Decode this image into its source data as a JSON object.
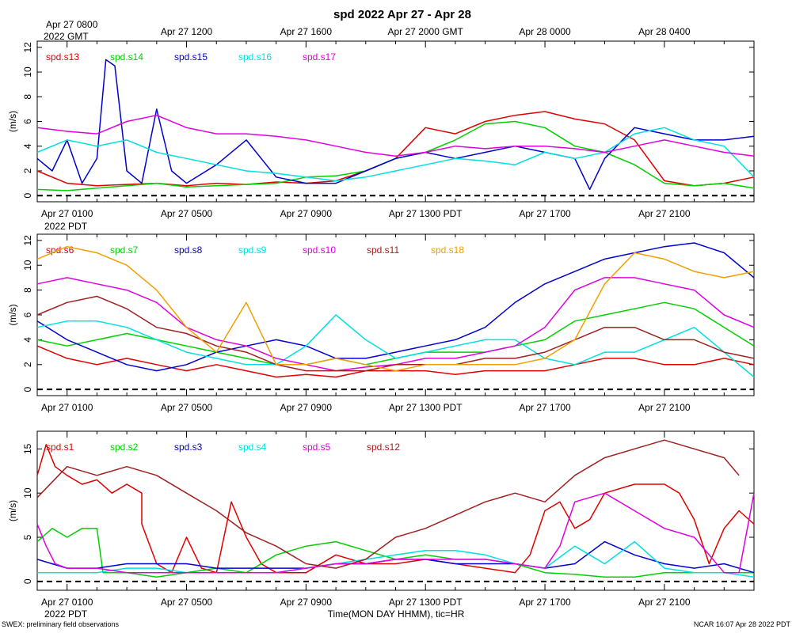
{
  "title": "spd 2022 Apr 27 - Apr 28",
  "top_axis": {
    "first_label": "Apr 27 0800",
    "first_sub": "2022 GMT",
    "labels": [
      "Apr 27 1200",
      "Apr 27 1600",
      "Apr 27 2000 GMT",
      "Apr 28 0000",
      "Apr 28 0400"
    ]
  },
  "bottom_axis": {
    "labels": [
      "Apr 27 0100",
      "Apr 27 0500",
      "Apr 27 0900",
      "Apr 27 1300 PDT",
      "Apr 27 1700",
      "Apr 27 2100"
    ],
    "sub": "2022 PDT",
    "xlabel": "Time(MON DAY HHMM), tic=HR"
  },
  "footer": {
    "left": "SWEX: preliminary field observations",
    "right": "NCAR 16:07 Apr 28 2022 PDT"
  },
  "colors": {
    "spd.s1": "#e00000",
    "spd.s2": "#00d000",
    "spd.s3": "#0000d0",
    "spd.s4": "#00e0e0",
    "spd.s5": "#e000e0",
    "spd.s6": "#e00000",
    "spd.s7": "#00d000",
    "spd.s8": "#0000d0",
    "spd.s9": "#00e0e0",
    "spd.s10": "#e000e0",
    "spd.s11": "#a02020",
    "spd.s12": "#a02020",
    "spd.s13": "#e00000",
    "spd.s14": "#00d000",
    "spd.s15": "#0000d0",
    "spd.s16": "#00e0e0",
    "spd.s17": "#e000e0",
    "spd.s18": "#f0a000"
  },
  "chart_data": [
    {
      "type": "line",
      "ylabel": "(m/s)",
      "ylim": [
        -0.5,
        12.5
      ],
      "yticks": [
        0,
        2,
        4,
        6,
        8,
        10,
        12
      ],
      "xlim_hours_pdt": [
        0.0,
        24.0
      ],
      "series": [
        {
          "name": "spd.s13",
          "x": [
            0,
            1,
            2,
            3,
            4,
            5,
            6,
            7,
            8,
            9,
            10,
            11,
            12,
            13,
            14,
            15,
            16,
            17,
            18,
            19,
            20,
            21,
            22,
            23,
            24
          ],
          "values": [
            2.0,
            1.0,
            0.8,
            0.9,
            1.0,
            0.8,
            1.0,
            0.9,
            1.1,
            1.0,
            1.2,
            2.0,
            3.0,
            5.5,
            5.0,
            6.0,
            6.5,
            6.8,
            6.2,
            5.8,
            4.5,
            1.2,
            0.8,
            1.0,
            1.5
          ]
        },
        {
          "name": "spd.s14",
          "x": [
            0,
            1,
            2,
            3,
            4,
            5,
            6,
            7,
            8,
            9,
            10,
            11,
            12,
            13,
            14,
            15,
            16,
            17,
            18,
            19,
            20,
            21,
            22,
            23,
            24
          ],
          "values": [
            0.5,
            0.4,
            0.6,
            0.8,
            1.0,
            0.7,
            0.8,
            0.9,
            1.0,
            1.5,
            1.6,
            2.0,
            3.0,
            3.5,
            4.5,
            5.8,
            6.0,
            5.5,
            4.0,
            3.5,
            2.5,
            1.0,
            0.8,
            1.0,
            0.6
          ]
        },
        {
          "name": "spd.s15",
          "x": [
            0,
            0.5,
            1,
            1.5,
            2,
            2.3,
            2.6,
            3,
            3.5,
            4,
            4.5,
            5,
            6,
            7,
            8,
            9,
            10,
            11,
            12,
            13,
            14,
            15,
            16,
            17,
            18,
            18.5,
            19,
            20,
            21,
            22,
            23,
            24
          ],
          "values": [
            3.0,
            2.0,
            4.5,
            1.0,
            3.0,
            11.0,
            10.5,
            2.0,
            1.0,
            7.0,
            2.0,
            1.0,
            2.5,
            4.5,
            1.5,
            1.0,
            1.0,
            2.0,
            3.0,
            3.5,
            3.0,
            3.5,
            4.0,
            3.5,
            3.0,
            0.5,
            3.0,
            5.5,
            5.0,
            4.5,
            4.5,
            4.8
          ]
        },
        {
          "name": "spd.s16",
          "x": [
            0,
            1,
            2,
            3,
            4,
            5,
            6,
            7,
            8,
            9,
            10,
            11,
            12,
            13,
            14,
            15,
            16,
            17,
            18,
            19,
            20,
            21,
            22,
            23,
            24
          ],
          "values": [
            3.5,
            4.5,
            4.0,
            4.5,
            3.5,
            3.0,
            2.5,
            2.0,
            1.8,
            1.5,
            1.2,
            1.5,
            2.0,
            2.5,
            3.0,
            2.8,
            2.5,
            3.5,
            3.0,
            3.5,
            5.0,
            5.5,
            4.5,
            4.0,
            1.5
          ]
        },
        {
          "name": "spd.s17",
          "x": [
            0,
            1,
            2,
            3,
            4,
            5,
            6,
            7,
            8,
            9,
            10,
            11,
            12,
            13,
            14,
            15,
            16,
            17,
            18,
            19,
            20,
            21,
            22,
            23,
            24
          ],
          "values": [
            5.5,
            5.2,
            5.0,
            6.0,
            6.5,
            5.5,
            5.0,
            5.0,
            4.8,
            4.5,
            4.0,
            3.5,
            3.2,
            3.5,
            4.0,
            3.8,
            4.0,
            4.0,
            3.8,
            3.5,
            4.0,
            4.5,
            4.0,
            3.5,
            3.2
          ]
        }
      ]
    },
    {
      "type": "line",
      "ylabel": "(m/s)",
      "ylim": [
        -0.5,
        12.5
      ],
      "yticks": [
        0,
        2,
        4,
        6,
        8,
        10,
        12
      ],
      "xlim_hours_pdt": [
        0.0,
        24.0
      ],
      "series": [
        {
          "name": "spd.s6",
          "x": [
            0,
            1,
            2,
            3,
            4,
            5,
            6,
            7,
            8,
            9,
            10,
            11,
            12,
            13,
            14,
            15,
            16,
            17,
            18,
            19,
            20,
            21,
            22,
            23,
            24
          ],
          "values": [
            3.5,
            2.5,
            2.0,
            2.5,
            2.0,
            1.5,
            2.0,
            1.5,
            1.0,
            1.2,
            1.0,
            1.5,
            1.5,
            1.5,
            1.2,
            1.5,
            1.5,
            1.5,
            2.0,
            2.5,
            2.5,
            2.0,
            2.0,
            2.5,
            2.0
          ]
        },
        {
          "name": "spd.s7",
          "x": [
            0,
            1,
            2,
            3,
            4,
            5,
            6,
            7,
            8,
            9,
            10,
            11,
            12,
            13,
            14,
            15,
            16,
            17,
            18,
            19,
            20,
            21,
            22,
            23,
            24
          ],
          "values": [
            4.0,
            3.5,
            4.0,
            4.5,
            4.0,
            3.5,
            3.0,
            2.5,
            2.0,
            2.0,
            2.5,
            2.0,
            2.5,
            3.0,
            3.0,
            3.0,
            3.5,
            4.0,
            5.5,
            6.0,
            6.5,
            7.0,
            6.5,
            5.0,
            3.5
          ]
        },
        {
          "name": "spd.s8",
          "x": [
            0,
            1,
            2,
            3,
            4,
            5,
            6,
            7,
            8,
            9,
            10,
            11,
            12,
            13,
            14,
            15,
            16,
            17,
            18,
            19,
            20,
            21,
            22,
            23,
            24
          ],
          "values": [
            5.5,
            4.0,
            3.0,
            2.0,
            1.5,
            2.0,
            3.0,
            3.5,
            4.0,
            3.5,
            2.5,
            2.5,
            3.0,
            3.5,
            4.0,
            5.0,
            7.0,
            8.5,
            9.5,
            10.5,
            11.0,
            11.5,
            11.8,
            11.0,
            9.0
          ]
        },
        {
          "name": "spd.s9",
          "x": [
            0,
            1,
            2,
            3,
            4,
            5,
            6,
            7,
            8,
            9,
            10,
            11,
            12,
            13,
            14,
            15,
            16,
            17,
            18,
            19,
            20,
            21,
            22,
            23,
            24
          ],
          "values": [
            5.0,
            5.5,
            5.5,
            5.0,
            4.0,
            3.0,
            2.5,
            2.0,
            2.0,
            3.5,
            6.0,
            4.0,
            2.5,
            3.0,
            3.5,
            4.0,
            4.0,
            2.5,
            2.0,
            3.0,
            3.0,
            4.0,
            5.0,
            3.0,
            1.0
          ]
        },
        {
          "name": "spd.s10",
          "x": [
            0,
            1,
            2,
            3,
            4,
            5,
            6,
            7,
            8,
            9,
            10,
            11,
            12,
            13,
            14,
            15,
            16,
            17,
            18,
            19,
            20,
            21,
            22,
            23,
            24
          ],
          "values": [
            8.5,
            9.0,
            8.5,
            8.0,
            7.0,
            5.0,
            4.0,
            3.5,
            2.5,
            2.0,
            1.5,
            1.8,
            2.0,
            2.5,
            2.5,
            3.0,
            3.5,
            5.0,
            8.0,
            9.0,
            9.0,
            8.5,
            8.0,
            6.0,
            5.0
          ]
        },
        {
          "name": "spd.s11",
          "x": [
            0,
            1,
            2,
            3,
            4,
            5,
            6,
            7,
            8,
            9,
            10,
            11,
            12,
            13,
            14,
            15,
            16,
            17,
            18,
            19,
            20,
            21,
            22,
            23,
            24
          ],
          "values": [
            6.0,
            7.0,
            7.5,
            6.5,
            5.0,
            4.5,
            3.5,
            3.0,
            2.0,
            1.5,
            1.5,
            1.5,
            2.0,
            2.0,
            2.0,
            2.5,
            2.5,
            3.0,
            4.0,
            5.0,
            5.0,
            4.0,
            4.0,
            3.0,
            2.5
          ]
        },
        {
          "name": "spd.s18",
          "x": [
            0,
            1,
            2,
            3,
            4,
            5,
            6,
            7,
            8,
            9,
            10,
            11,
            12,
            13,
            14,
            15,
            16,
            17,
            18,
            19,
            20,
            21,
            22,
            23,
            24
          ],
          "values": [
            10.5,
            11.5,
            11.0,
            10.0,
            8.0,
            5.0,
            3.0,
            7.0,
            2.0,
            2.0,
            2.5,
            2.0,
            1.5,
            2.0,
            2.0,
            2.0,
            2.0,
            2.5,
            4.0,
            8.5,
            11.0,
            10.5,
            9.5,
            9.0,
            9.5
          ]
        }
      ]
    },
    {
      "type": "line",
      "ylabel": "(m/s)",
      "ylim": [
        -1,
        17
      ],
      "yticks": [
        0,
        5,
        10,
        15
      ],
      "xlim_hours_pdt": [
        0.0,
        24.0
      ],
      "series": [
        {
          "name": "spd.s1",
          "x": [
            0,
            0.3,
            0.6,
            1,
            1.5,
            2,
            2.5,
            3,
            3.5,
            3.5,
            4,
            4.5,
            5,
            5.5,
            6,
            6.5,
            7,
            7.5,
            8,
            8.5,
            9,
            10,
            11,
            12,
            13,
            14,
            15,
            16,
            16.5,
            17,
            17.5,
            18,
            18.5,
            19,
            20,
            21,
            21.5,
            22,
            22.5,
            23,
            23.5,
            24
          ],
          "values": [
            12,
            15.5,
            13,
            12,
            11,
            11.5,
            10,
            11,
            10,
            6.5,
            2,
            1,
            5,
            1.5,
            1,
            9,
            5,
            2,
            1,
            1,
            1,
            3,
            2,
            2,
            2.5,
            2,
            1.5,
            1,
            3,
            8,
            9,
            6,
            7,
            10,
            11,
            11,
            10,
            7,
            2,
            6,
            8,
            6.5
          ]
        },
        {
          "name": "spd.s2",
          "x": [
            0,
            0.5,
            1,
            1.5,
            2,
            2.2,
            2.5,
            3,
            4,
            5,
            6,
            7,
            8,
            9,
            10,
            11,
            12,
            13,
            14,
            15,
            16,
            17,
            18,
            19,
            20,
            21,
            22,
            23,
            24
          ],
          "values": [
            4.5,
            6,
            5,
            6,
            6,
            1,
            1,
            1,
            0.5,
            1,
            1.5,
            1,
            3,
            4,
            4.5,
            3.5,
            2.5,
            3,
            2.5,
            2.5,
            2,
            1,
            0.8,
            0.5,
            0.5,
            1,
            1,
            1,
            1
          ]
        },
        {
          "name": "spd.s3",
          "x": [
            0,
            1,
            2,
            3,
            4,
            5,
            6,
            7,
            8,
            9,
            10,
            11,
            12,
            13,
            14,
            15,
            16,
            17,
            18,
            19,
            20,
            21,
            22,
            23,
            24
          ],
          "values": [
            2.5,
            1.5,
            1.5,
            2.0,
            2.0,
            2.0,
            1.5,
            1.5,
            1.5,
            1.5,
            2.0,
            2.0,
            2.5,
            2.5,
            2.0,
            2.0,
            2.0,
            1.5,
            2.0,
            4.5,
            3.0,
            2.0,
            1.5,
            2.0,
            1.0
          ]
        },
        {
          "name": "spd.s4",
          "x": [
            0,
            1,
            2,
            3,
            4,
            5,
            6,
            7,
            8,
            9,
            10,
            11,
            12,
            13,
            14,
            15,
            16,
            17,
            18,
            19,
            20,
            21,
            22,
            23,
            24
          ],
          "values": [
            1.0,
            1.0,
            1.0,
            1.5,
            1.5,
            1.0,
            1.0,
            1.0,
            1.0,
            1.5,
            2.0,
            2.5,
            3.0,
            3.5,
            3.5,
            3.0,
            2.0,
            1.5,
            4.0,
            2.0,
            4.5,
            1.5,
            1.0,
            1.0,
            0.5
          ]
        },
        {
          "name": "spd.s5",
          "x": [
            0,
            0.3,
            0.6,
            1,
            2,
            3,
            4,
            5,
            6,
            7,
            8,
            9,
            10,
            11,
            12,
            13,
            14,
            15,
            16,
            17,
            17.5,
            18,
            19,
            20,
            21,
            22,
            23,
            23.5,
            24
          ],
          "values": [
            6.5,
            4,
            2,
            1.5,
            1.5,
            1,
            1,
            1,
            1,
            1,
            1,
            1.5,
            2,
            2,
            2.5,
            2.5,
            2.5,
            2.5,
            2,
            1.5,
            4,
            9,
            10,
            8,
            6,
            5,
            1,
            1,
            10
          ]
        },
        {
          "name": "spd.s12",
          "x": [
            0,
            1,
            2,
            3,
            4,
            5,
            6,
            7,
            8,
            9,
            10,
            11,
            12,
            13,
            14,
            15,
            16,
            17,
            18,
            19,
            20,
            21,
            22,
            23,
            23.5
          ],
          "values": [
            9.5,
            13,
            12,
            13,
            12,
            10,
            8,
            5.5,
            4,
            2,
            1.5,
            2.5,
            5,
            6,
            7.5,
            9,
            10,
            9,
            12,
            14,
            15,
            16,
            15,
            14,
            12
          ]
        }
      ]
    }
  ]
}
